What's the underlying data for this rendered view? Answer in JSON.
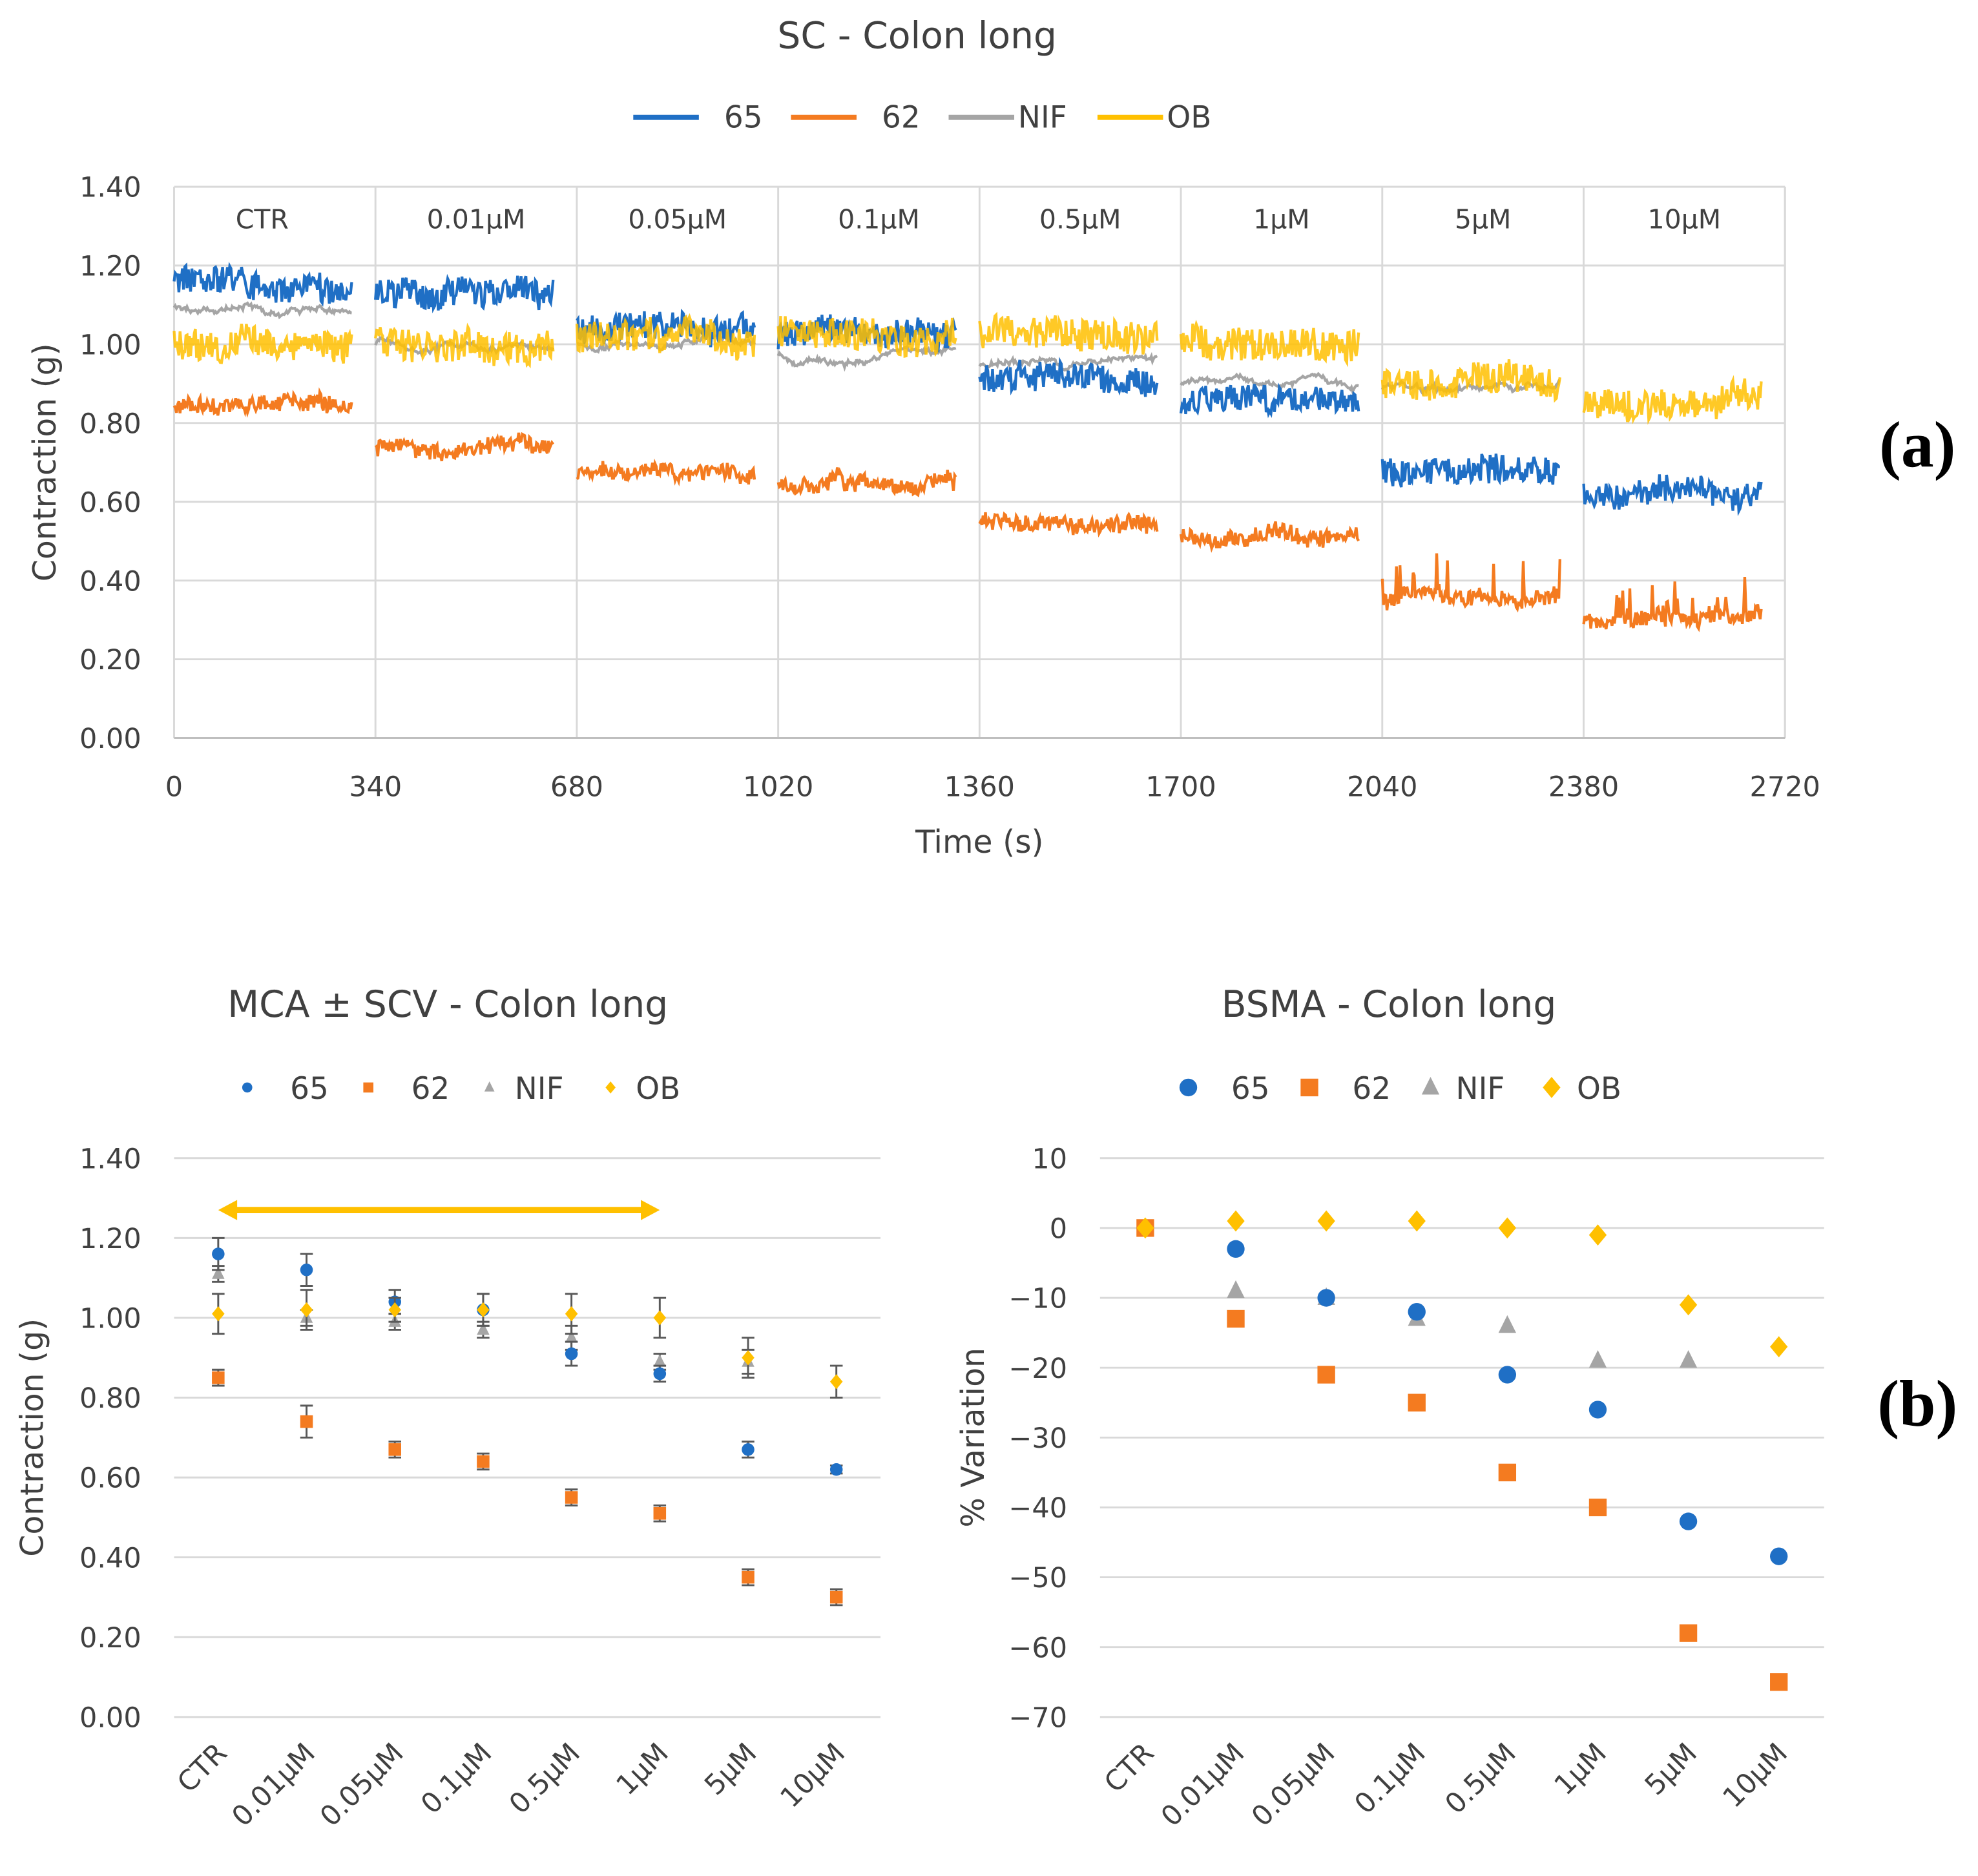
{
  "colors": {
    "65": "#1f6fc5",
    "62": "#f47b20",
    "NIF": "#a5a5a5",
    "OB": "#ffc000",
    "grid": "#d9d9d9"
  },
  "panel_labels": [
    "(a)",
    "(b)"
  ],
  "chart_data": [
    {
      "type": "line",
      "title": "SC - Colon long",
      "xlabel": "Time (s)",
      "ylabel": "Contraction (g)",
      "xlim": [
        0,
        2720
      ],
      "ylim": [
        0,
        1.4
      ],
      "xticks": [
        "0",
        "340",
        "680",
        "1020",
        "1360",
        "1700",
        "2040",
        "2380",
        "2720"
      ],
      "yticks": [
        "0.00",
        "0.20",
        "0.40",
        "0.60",
        "0.80",
        "1.00",
        "1.20",
        "1.40"
      ],
      "segments": [
        "CTR",
        "0.01µM",
        "0.05µM",
        "0.1µM",
        "0.5µM",
        "1µM",
        "5µM",
        "10µM"
      ],
      "legend": [
        "65",
        "62",
        "NIF",
        "OB"
      ],
      "legend_position": "top",
      "series": [
        {
          "name": "65",
          "segment_means": [
            1.15,
            1.13,
            1.04,
            1.02,
            0.91,
            0.86,
            0.67,
            0.62
          ]
        },
        {
          "name": "62",
          "segment_means": [
            0.85,
            0.73,
            0.67,
            0.64,
            0.55,
            0.51,
            0.35,
            0.3
          ]
        },
        {
          "name": "NIF",
          "segment_means": [
            1.1,
            1.0,
            1.0,
            0.97,
            0.95,
            0.9,
            0.89,
            null
          ]
        },
        {
          "name": "OB",
          "segment_means": [
            1.0,
            1.01,
            1.02,
            1.03,
            1.02,
            1.0,
            0.9,
            0.85
          ]
        }
      ]
    },
    {
      "type": "scatter",
      "title": "MCA ± SCV - Colon long",
      "ylabel": "Contraction (g)",
      "ylim": [
        0,
        1.4
      ],
      "yticks": [
        "0.00",
        "0.20",
        "0.40",
        "0.60",
        "0.80",
        "1.00",
        "1.20",
        "1.40"
      ],
      "categories": [
        "CTR",
        "0.01µM",
        "0.05µM",
        "0.1µM",
        "0.5µM",
        "1µM",
        "5µM",
        "10µM"
      ],
      "legend": [
        "65",
        "62",
        "NIF",
        "OB"
      ],
      "legend_position": "top",
      "annotation": {
        "type": "double-arrow",
        "from": "CTR",
        "to": "1µM",
        "y": 1.27
      },
      "series": [
        {
          "name": "65",
          "values": [
            1.16,
            1.12,
            1.04,
            1.02,
            0.91,
            0.86,
            0.67,
            0.62
          ],
          "err": [
            0.04,
            0.04,
            0.03,
            0.04,
            0.03,
            0.02,
            0.02,
            0.01
          ]
        },
        {
          "name": "62",
          "values": [
            0.85,
            0.74,
            0.67,
            0.64,
            0.55,
            0.51,
            0.35,
            0.3
          ],
          "err": [
            0.02,
            0.04,
            0.02,
            0.02,
            0.02,
            0.02,
            0.02,
            0.02
          ]
        },
        {
          "name": "NIF",
          "values": [
            1.11,
            1.0,
            0.99,
            0.97,
            0.95,
            0.89,
            0.89,
            null
          ],
          "err": [
            0.02,
            0.02,
            0.02,
            0.02,
            0.03,
            0.02,
            0.03,
            null
          ]
        },
        {
          "name": "OB",
          "values": [
            1.01,
            1.02,
            1.02,
            1.02,
            1.01,
            1.0,
            0.9,
            0.84
          ],
          "err": [
            0.05,
            0.05,
            0.03,
            0.04,
            0.05,
            0.05,
            0.05,
            0.04
          ]
        }
      ]
    },
    {
      "type": "scatter",
      "title": "BSMA - Colon long",
      "ylabel": "% Variation",
      "ylim": [
        -70,
        10
      ],
      "yticks": [
        "10",
        "0",
        "−10",
        "−20",
        "−30",
        "−40",
        "−50",
        "−60",
        "−70"
      ],
      "categories": [
        "CTR",
        "0.01µM",
        "0.05µM",
        "0.1µM",
        "0.5µM",
        "1µM",
        "5µM",
        "10µM"
      ],
      "legend": [
        "65",
        "62",
        "NIF",
        "OB"
      ],
      "legend_position": "top",
      "series": [
        {
          "name": "65",
          "values": [
            0,
            -3,
            -10,
            -12,
            -21,
            -26,
            -42,
            -47
          ]
        },
        {
          "name": "62",
          "values": [
            0,
            -13,
            -21,
            -25,
            -35,
            -40,
            -58,
            -65
          ]
        },
        {
          "name": "NIF",
          "values": [
            0,
            -9,
            -10,
            -13,
            -14,
            -19,
            -19,
            null
          ]
        },
        {
          "name": "OB",
          "values": [
            0,
            1,
            1,
            1,
            0,
            -1,
            -11,
            -17
          ]
        }
      ]
    }
  ]
}
